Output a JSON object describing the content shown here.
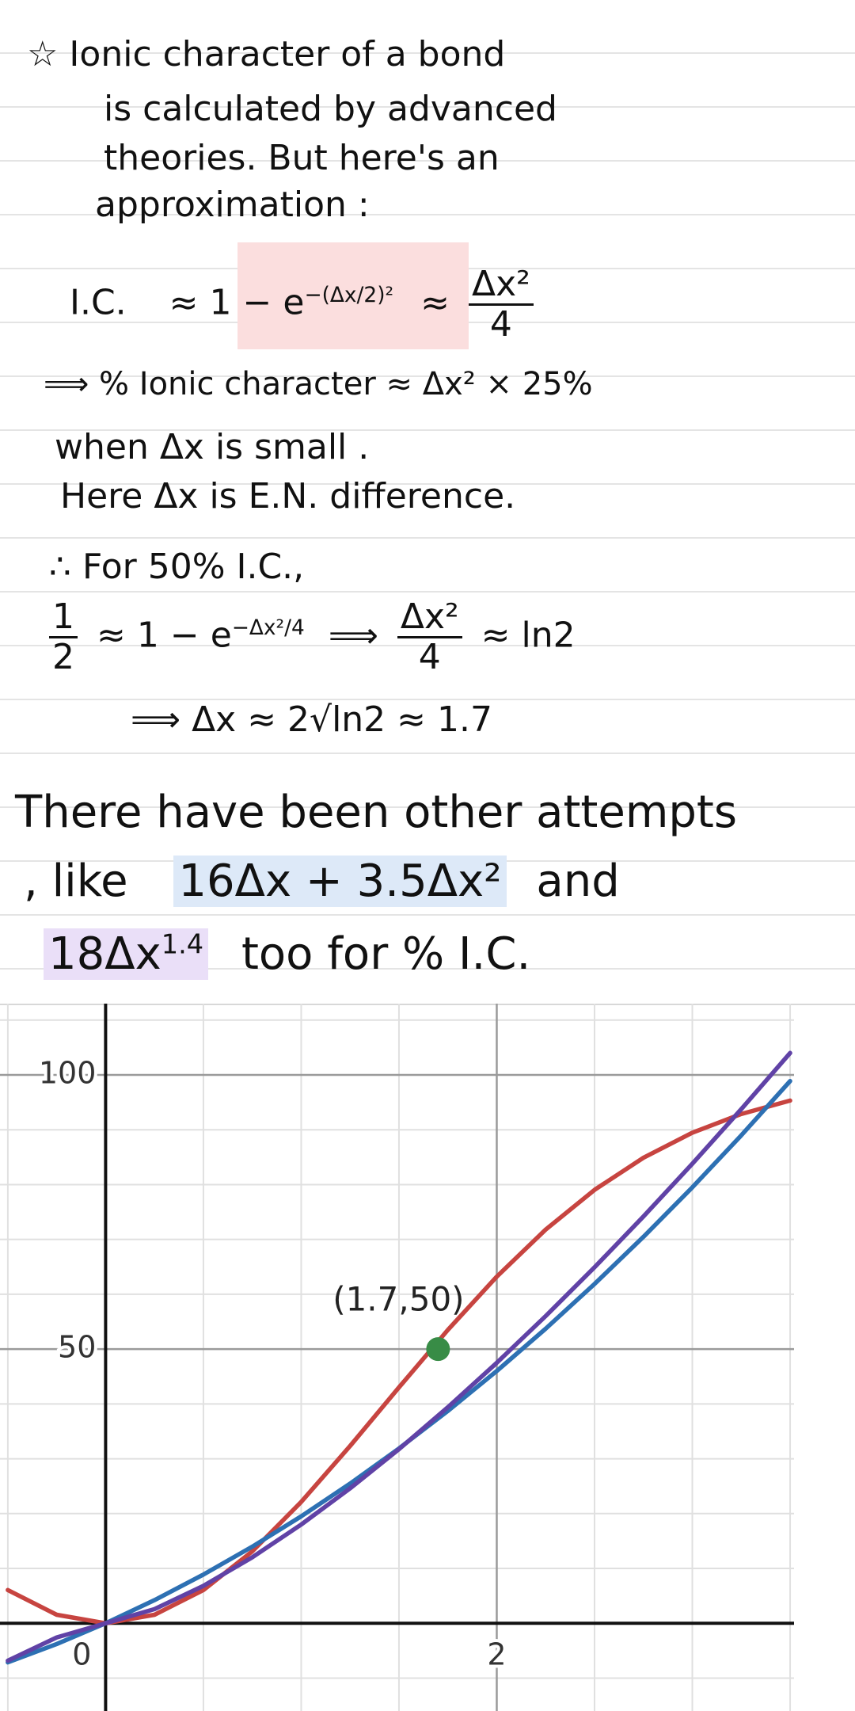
{
  "notes": {
    "l0": "☆ Ionic character of a bond",
    "l1": "is calculated by advanced",
    "l2": "theories. But here's an",
    "l3": "approximation :",
    "f1": {
      "lhs": "I.C.",
      "approx1": "≈",
      "base": "1 − e",
      "exp": "−(Δx/2)²",
      "approx2": "≈",
      "num": "Δx²",
      "den": "4"
    },
    "l4": "⟹ % Ionic character ≈ Δx² × 25%",
    "l5": "when Δx is small .",
    "l6": "Here Δx is E.N. difference.",
    "l7": "∴ For 50% I.C.,",
    "f2": {
      "num1": "1",
      "den1": "2",
      "base": "≈ 1 − e",
      "exp": "−Δx²/4",
      "arrow": "⟹",
      "num2": "Δx²",
      "den2": "4",
      "rhs": "≈ ln2"
    },
    "l8": "⟹ Δx ≈ 2√ln2 ≈ 1.7",
    "b0": "There have been other attempts",
    "b1a": ", like",
    "b1b": "16Δx + 3.5Δx²",
    "b1c": "and",
    "b2a": "18Δx",
    "b2sup": "1.4",
    "b2b": "too for % I.C."
  },
  "chart_data": {
    "type": "line",
    "x": [
      -0.5,
      -0.25,
      0,
      0.25,
      0.5,
      0.75,
      1,
      1.25,
      1.5,
      1.75,
      2,
      2.25,
      2.5,
      2.75,
      3,
      3.25,
      3.5
    ],
    "series": [
      {
        "color": "#c74440",
        "values": [
          6.06,
          1.55,
          0,
          1.55,
          6.06,
          13.12,
          22.12,
          32.33,
          43.02,
          53.5,
          63.21,
          71.79,
          79.04,
          84.9,
          89.46,
          92.87,
          95.32
        ]
      },
      {
        "color": "#2d70b3",
        "values": [
          -7.13,
          -3.78,
          0,
          4.22,
          8.88,
          13.97,
          19.5,
          25.47,
          31.88,
          38.72,
          46,
          53.72,
          61.88,
          70.47,
          79.5,
          88.97,
          98.88
        ]
      },
      {
        "color": "#6042a6",
        "values": [
          -6.82,
          -2.58,
          0,
          2.58,
          6.82,
          12.03,
          18,
          24.6,
          31.75,
          39.4,
          47.5,
          56.02,
          64.92,
          74.19,
          83.8,
          93.75,
          104
        ]
      }
    ],
    "point": {
      "x": 1.7,
      "y": 50,
      "label": "(1.7,50)",
      "color": "#388c46"
    },
    "xlim": [
      -0.54,
      3.52
    ],
    "ylim": [
      -16,
      113
    ],
    "xticks": [
      0,
      2
    ],
    "yticks": [
      50,
      100
    ],
    "xgrid": [
      -0.5,
      0.5,
      1,
      1.5,
      2.5,
      3,
      3.5
    ],
    "ygrid": [
      -10,
      10,
      20,
      30,
      40,
      60,
      70,
      80,
      90,
      110
    ],
    "grid": true
  }
}
